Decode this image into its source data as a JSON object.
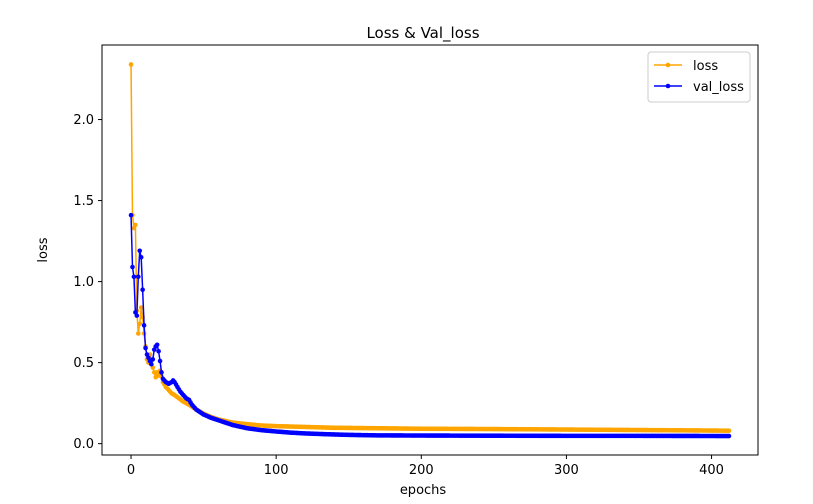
{
  "chart_data": {
    "type": "line",
    "title": "Loss & Val_loss",
    "xlabel": "epochs",
    "ylabel": "loss",
    "xlim": [
      -20,
      432
    ],
    "ylim": [
      -0.07,
      2.46
    ],
    "x_ticks": [
      0,
      100,
      200,
      300,
      400
    ],
    "y_ticks": [
      0.0,
      0.5,
      1.0,
      1.5,
      2.0
    ],
    "x_tick_labels": [
      "0",
      "100",
      "200",
      "300",
      "400"
    ],
    "y_tick_labels": [
      "0.0",
      "0.5",
      "1.0",
      "1.5",
      "2.0"
    ],
    "legend_position": "top-right",
    "grid": false,
    "series": [
      {
        "name": "loss",
        "color": "#ffa500",
        "keypoints": [
          [
            0,
            2.34
          ],
          [
            1,
            1.41
          ],
          [
            2,
            1.33
          ],
          [
            3,
            1.35
          ],
          [
            4,
            0.82
          ],
          [
            5,
            0.68
          ],
          [
            6,
            0.74
          ],
          [
            7,
            0.84
          ],
          [
            8,
            0.78
          ],
          [
            9,
            0.68
          ],
          [
            10,
            0.6
          ],
          [
            11,
            0.52
          ],
          [
            12,
            0.5
          ],
          [
            13,
            0.55
          ],
          [
            14,
            0.52
          ],
          [
            15,
            0.47
          ],
          [
            16,
            0.44
          ],
          [
            17,
            0.41
          ],
          [
            18,
            0.44
          ],
          [
            19,
            0.42
          ],
          [
            20,
            0.45
          ],
          [
            22,
            0.38
          ],
          [
            24,
            0.35
          ],
          [
            26,
            0.33
          ],
          [
            28,
            0.31
          ],
          [
            30,
            0.3
          ],
          [
            33,
            0.28
          ],
          [
            36,
            0.26
          ],
          [
            40,
            0.24
          ],
          [
            45,
            0.21
          ],
          [
            50,
            0.185
          ],
          [
            55,
            0.165
          ],
          [
            60,
            0.15
          ],
          [
            70,
            0.13
          ],
          [
            80,
            0.12
          ],
          [
            90,
            0.112
          ],
          [
            100,
            0.108
          ],
          [
            120,
            0.103
          ],
          [
            140,
            0.098
          ],
          [
            170,
            0.095
          ],
          [
            200,
            0.092
          ],
          [
            250,
            0.09
          ],
          [
            300,
            0.087
          ],
          [
            350,
            0.084
          ],
          [
            412,
            0.08
          ]
        ]
      },
      {
        "name": "val_loss",
        "color": "#0000ff",
        "keypoints": [
          [
            0,
            1.41
          ],
          [
            1,
            1.09
          ],
          [
            2,
            1.03
          ],
          [
            3,
            0.81
          ],
          [
            4,
            0.79
          ],
          [
            5,
            1.03
          ],
          [
            6,
            1.19
          ],
          [
            7,
            1.15
          ],
          [
            8,
            0.95
          ],
          [
            9,
            0.73
          ],
          [
            10,
            0.59
          ],
          [
            11,
            0.55
          ],
          [
            12,
            0.53
          ],
          [
            13,
            0.51
          ],
          [
            14,
            0.49
          ],
          [
            15,
            0.52
          ],
          [
            16,
            0.58
          ],
          [
            17,
            0.6
          ],
          [
            18,
            0.61
          ],
          [
            19,
            0.57
          ],
          [
            20,
            0.51
          ],
          [
            21,
            0.44
          ],
          [
            22,
            0.4
          ],
          [
            24,
            0.38
          ],
          [
            26,
            0.37
          ],
          [
            28,
            0.38
          ],
          [
            29,
            0.39
          ],
          [
            30,
            0.38
          ],
          [
            32,
            0.35
          ],
          [
            34,
            0.32
          ],
          [
            36,
            0.3
          ],
          [
            38,
            0.28
          ],
          [
            40,
            0.27
          ],
          [
            42,
            0.24
          ],
          [
            45,
            0.21
          ],
          [
            50,
            0.18
          ],
          [
            55,
            0.16
          ],
          [
            60,
            0.145
          ],
          [
            70,
            0.115
          ],
          [
            80,
            0.095
          ],
          [
            90,
            0.083
          ],
          [
            100,
            0.075
          ],
          [
            110,
            0.068
          ],
          [
            120,
            0.063
          ],
          [
            135,
            0.058
          ],
          [
            150,
            0.054
          ],
          [
            170,
            0.051
          ],
          [
            200,
            0.05
          ],
          [
            250,
            0.049
          ],
          [
            300,
            0.048
          ],
          [
            350,
            0.048
          ],
          [
            412,
            0.047
          ]
        ]
      }
    ]
  }
}
